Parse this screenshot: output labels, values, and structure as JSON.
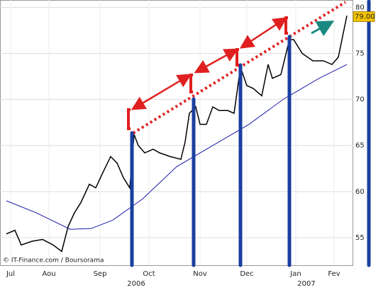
{
  "chart_data": {
    "type": "line",
    "xlim": [
      0,
      166
    ],
    "ylim": [
      52,
      80.8
    ],
    "yticks": [
      55,
      60,
      65,
      70,
      75,
      80
    ],
    "xticks": [
      {
        "value": 5,
        "label": "Jul"
      },
      {
        "value": 23,
        "label": "Aou"
      },
      {
        "value": 47,
        "label": "Sep"
      },
      {
        "value": 70,
        "label": "Oct"
      },
      {
        "value": 94,
        "label": "Nov"
      },
      {
        "value": 116,
        "label": "Dec"
      },
      {
        "value": 139,
        "label": "Jan"
      },
      {
        "value": 157,
        "label": "Fev"
      }
    ],
    "years": [
      {
        "value": 64,
        "label": "2006"
      },
      {
        "value": 144,
        "label": "2007"
      }
    ],
    "grid": true,
    "series": [
      {
        "color": "#000000",
        "x": [
          3,
          7,
          10,
          15,
          20,
          25,
          29,
          32,
          35,
          38,
          42,
          45,
          48,
          52,
          55,
          58,
          61,
          63,
          65,
          68,
          72,
          75,
          80,
          85,
          87,
          89,
          92,
          94,
          97,
          100,
          103,
          107,
          110,
          113,
          116,
          119,
          123,
          126,
          128,
          132,
          136,
          138,
          142,
          147,
          152,
          156,
          159,
          163
        ],
        "values": [
          55.4,
          55.8,
          54.2,
          54.6,
          54.8,
          54.2,
          53.5,
          56.2,
          57.7,
          58.8,
          60.8,
          60.4,
          61.9,
          63.8,
          63.1,
          61.5,
          60.4,
          66.2,
          65,
          64.2,
          64.6,
          64.2,
          63.8,
          63.5,
          65.4,
          68.5,
          69.2,
          67.3,
          67.3,
          69.2,
          68.8,
          68.8,
          68.5,
          73.5,
          71.5,
          71.2,
          70.4,
          73.8,
          72.3,
          72.7,
          76.5,
          76.5,
          75,
          74.2,
          74.2,
          73.8,
          74.6,
          79.1
        ]
      },
      {
        "color": "#1a1aa8",
        "x": [
          3,
          17,
          33,
          43,
          53,
          67,
          83,
          100,
          117,
          133,
          150,
          163
        ],
        "values": [
          59,
          57.7,
          55.9,
          56,
          56.9,
          59.2,
          62.7,
          65,
          67.3,
          70,
          72.3,
          73.8
        ]
      }
    ],
    "last_price": {
      "value": 79,
      "label": "79.00"
    },
    "source": "© IT-Finance.com / Boursorama"
  }
}
